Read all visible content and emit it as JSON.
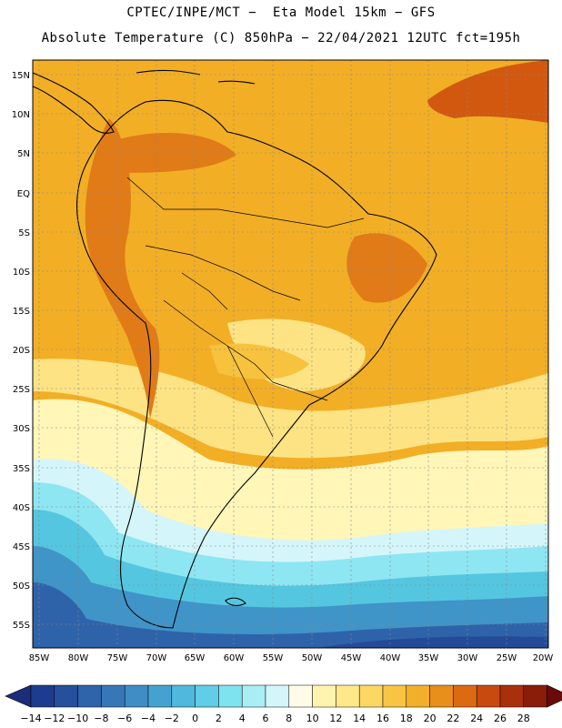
{
  "header": {
    "line1": "CPTEC/INPE/MCT −  Eta Model 15km − GFS",
    "line2": "Absolute Temperature (C) 850hPa − 22/04/2021 12UTC fct=195h"
  },
  "axes": {
    "lat_labels": [
      "15N",
      "10N",
      "5N",
      "EQ",
      "5S",
      "10S",
      "15S",
      "20S",
      "25S",
      "30S",
      "35S",
      "40S",
      "45S",
      "50S",
      "55S"
    ],
    "lon_labels": [
      "85W",
      "80W",
      "75W",
      "70W",
      "65W",
      "60W",
      "55W",
      "50W",
      "45W",
      "40W",
      "35W",
      "30W",
      "25W",
      "20W"
    ]
  },
  "colorbar": {
    "labels": [
      "-14",
      "-12",
      "-10",
      "-8",
      "-6",
      "-4",
      "-2",
      "0",
      "2",
      "4",
      "6",
      "8",
      "10",
      "12",
      "14",
      "16",
      "18",
      "20",
      "22",
      "24",
      "26",
      "28"
    ],
    "colors": [
      "#1d3c8e",
      "#264f9c",
      "#2f63aa",
      "#3877b7",
      "#3f8dc4",
      "#45a2d0",
      "#4fb8dc",
      "#5fcee6",
      "#7ee3ef",
      "#a9eef5",
      "#d4f6fa",
      "#fffbe8",
      "#fff3b0",
      "#ffe88a",
      "#fbd764",
      "#f7c543",
      "#f2b02a",
      "#e88e1a",
      "#dc6a12",
      "#c84a0e",
      "#aa300b",
      "#8a1c0a"
    ],
    "left_arrow_color": "#1a2d7a",
    "right_arrow_color": "#6b0a0a"
  },
  "field_colors": {
    "ocean_n": "#f2ae25",
    "land_warm": "#ef9e1f",
    "hot": "#e07b18",
    "hottest": "#d2580f",
    "mid": "#f7c23e",
    "light": "#fde383",
    "pale": "#fff6b8",
    "cream": "#fffbe8",
    "cyan_pale": "#d4f6fa",
    "cyan": "#8ee6f2",
    "cyan_deep": "#55c6e0",
    "blue_light": "#3f94c8",
    "blue": "#2e63aa",
    "blue_deep": "#244a98"
  }
}
